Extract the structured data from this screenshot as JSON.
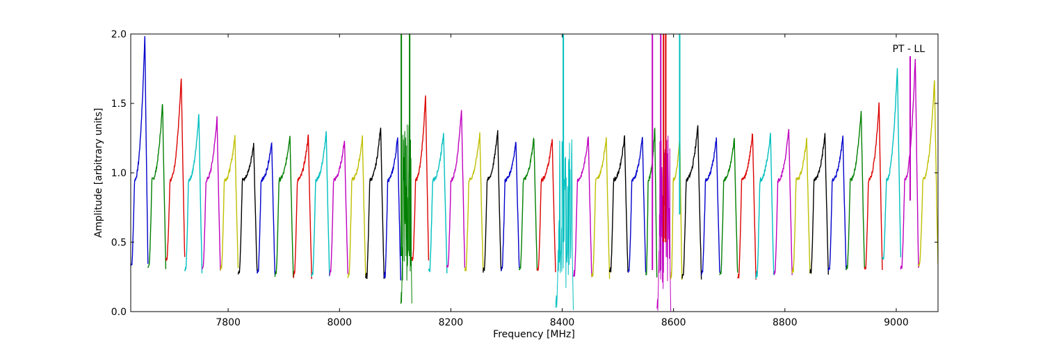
{
  "chart_data": {
    "type": "line",
    "title": "",
    "xlabel": "Frequency [MHz]",
    "ylabel": "Amplitude [arbitrary units]",
    "annotation": "PT - LL",
    "xlim": [
      7625,
      9075
    ],
    "ylim": [
      0.0,
      2.0
    ],
    "x_ticks": [
      7800,
      8000,
      8200,
      8400,
      8600,
      8800,
      9000
    ],
    "y_ticks": [
      "0.0",
      "0.5",
      "1.0",
      "1.5",
      "2.0"
    ],
    "grid": false,
    "legend": "none",
    "color_cycle": [
      "#0000cc",
      "#007f00",
      "#dd0000",
      "#00bfbf",
      "#bf00bf",
      "#bfbf00",
      "#000000"
    ],
    "channels": [
      {
        "start": 7625,
        "end": 7656,
        "top": 2.0,
        "low": 0.33,
        "edge": 0.42,
        "color": "#0000cc"
      },
      {
        "start": 7656,
        "end": 7688,
        "top": 1.51,
        "low": 0.32,
        "edge": 0.38,
        "color": "#007f00"
      },
      {
        "start": 7688,
        "end": 7722,
        "top": 1.69,
        "low": 0.38,
        "edge": 0.38,
        "color": "#dd0000"
      },
      {
        "start": 7722,
        "end": 7753,
        "top": 1.43,
        "low": 0.29,
        "edge": 0.38,
        "color": "#00bfbf"
      },
      {
        "start": 7753,
        "end": 7786,
        "top": 1.4,
        "low": 0.31,
        "edge": 0.38,
        "color": "#bf00bf"
      },
      {
        "start": 7786,
        "end": 7818,
        "top": 1.27,
        "low": 0.3,
        "edge": 0.38,
        "color": "#bfbf00"
      },
      {
        "start": 7818,
        "end": 7852,
        "top": 1.21,
        "low": 0.28,
        "edge": 0.38,
        "color": "#000000"
      },
      {
        "start": 7852,
        "end": 7884,
        "top": 1.23,
        "low": 0.27,
        "edge": 0.38,
        "color": "#0000cc"
      },
      {
        "start": 7884,
        "end": 7917,
        "top": 1.28,
        "low": 0.25,
        "edge": 0.38,
        "color": "#007f00"
      },
      {
        "start": 7917,
        "end": 7950,
        "top": 1.27,
        "low": 0.25,
        "edge": 0.38,
        "color": "#dd0000"
      },
      {
        "start": 7950,
        "end": 7982,
        "top": 1.29,
        "low": 0.26,
        "edge": 0.38,
        "color": "#00bfbf"
      },
      {
        "start": 7982,
        "end": 8015,
        "top": 1.24,
        "low": 0.27,
        "edge": 0.38,
        "color": "#bf00bf"
      },
      {
        "start": 8015,
        "end": 8047,
        "top": 1.26,
        "low": 0.25,
        "edge": 0.38,
        "color": "#bfbf00"
      },
      {
        "start": 8047,
        "end": 8080,
        "top": 1.34,
        "low": 0.24,
        "edge": 0.38,
        "color": "#000000"
      },
      {
        "start": 8080,
        "end": 8110,
        "top": 1.26,
        "low": 0.24,
        "edge": 0.38,
        "color": "#0000cc"
      },
      {
        "start": 8110,
        "end": 8130,
        "top": 1.33,
        "low": 0.05,
        "edge": 0.38,
        "color": "#007f00"
      },
      {
        "start": 8130,
        "end": 8160,
        "top": 1.56,
        "low": 0.38,
        "edge": 0.38,
        "color": "#dd0000"
      },
      {
        "start": 8160,
        "end": 8193,
        "top": 1.3,
        "low": 0.29,
        "edge": 0.38,
        "color": "#00bfbf"
      },
      {
        "start": 8193,
        "end": 8225,
        "top": 1.47,
        "low": 0.32,
        "edge": 0.38,
        "color": "#bf00bf"
      },
      {
        "start": 8225,
        "end": 8258,
        "top": 1.29,
        "low": 0.29,
        "edge": 0.38,
        "color": "#bfbf00"
      },
      {
        "start": 8258,
        "end": 8290,
        "top": 1.31,
        "low": 0.29,
        "edge": 0.38,
        "color": "#000000"
      },
      {
        "start": 8290,
        "end": 8323,
        "top": 1.23,
        "low": 0.3,
        "edge": 0.38,
        "color": "#0000cc"
      },
      {
        "start": 8323,
        "end": 8355,
        "top": 1.26,
        "low": 0.3,
        "edge": 0.38,
        "color": "#007f00"
      },
      {
        "start": 8355,
        "end": 8388,
        "top": 1.25,
        "low": 0.29,
        "edge": 0.38,
        "color": "#dd0000"
      },
      {
        "start": 8388,
        "end": 8420,
        "top": 1.25,
        "low": 0.02,
        "edge": 0.38,
        "color": "#00bfbf"
      },
      {
        "start": 8420,
        "end": 8453,
        "top": 1.27,
        "low": 0.26,
        "edge": 0.38,
        "color": "#bf00bf"
      },
      {
        "start": 8453,
        "end": 8485,
        "top": 1.26,
        "low": 0.25,
        "edge": 0.38,
        "color": "#bfbf00"
      },
      {
        "start": 8485,
        "end": 8518,
        "top": 1.27,
        "low": 0.28,
        "edge": 0.38,
        "color": "#000000"
      },
      {
        "start": 8518,
        "end": 8550,
        "top": 1.26,
        "low": 0.28,
        "edge": 0.38,
        "color": "#0000cc"
      },
      {
        "start": 8550,
        "end": 8570,
        "top": 1.33,
        "low": 0.26,
        "edge": 0.38,
        "color": "#007f00"
      },
      {
        "start": 8570,
        "end": 8595,
        "top": 1.22,
        "low": 0.01,
        "edge": 0.38,
        "color": "#bf00bf"
      },
      {
        "start": 8595,
        "end": 8615,
        "top": 1.27,
        "low": 0.24,
        "edge": 0.38,
        "color": "#bfbf00"
      },
      {
        "start": 8615,
        "end": 8650,
        "top": 1.34,
        "low": 0.24,
        "edge": 0.38,
        "color": "#000000"
      },
      {
        "start": 8650,
        "end": 8683,
        "top": 1.25,
        "low": 0.27,
        "edge": 0.38,
        "color": "#0000cc"
      },
      {
        "start": 8683,
        "end": 8715,
        "top": 1.25,
        "low": 0.27,
        "edge": 0.38,
        "color": "#007f00"
      },
      {
        "start": 8715,
        "end": 8748,
        "top": 1.29,
        "low": 0.24,
        "edge": 0.38,
        "color": "#dd0000"
      },
      {
        "start": 8748,
        "end": 8780,
        "top": 1.29,
        "low": 0.25,
        "edge": 0.38,
        "color": "#00bfbf"
      },
      {
        "start": 8780,
        "end": 8813,
        "top": 1.32,
        "low": 0.26,
        "edge": 0.38,
        "color": "#bf00bf"
      },
      {
        "start": 8813,
        "end": 8845,
        "top": 1.25,
        "low": 0.28,
        "edge": 0.38,
        "color": "#bfbf00"
      },
      {
        "start": 8845,
        "end": 8878,
        "top": 1.28,
        "low": 0.28,
        "edge": 0.38,
        "color": "#000000"
      },
      {
        "start": 8878,
        "end": 8910,
        "top": 1.26,
        "low": 0.29,
        "edge": 0.38,
        "color": "#0000cc"
      },
      {
        "start": 8910,
        "end": 8943,
        "top": 1.45,
        "low": 0.3,
        "edge": 0.38,
        "color": "#007f00"
      },
      {
        "start": 8943,
        "end": 8975,
        "top": 1.5,
        "low": 0.3,
        "edge": 0.38,
        "color": "#dd0000"
      },
      {
        "start": 8975,
        "end": 9008,
        "top": 1.77,
        "low": 0.38,
        "edge": 0.38,
        "color": "#00bfbf"
      },
      {
        "start": 9008,
        "end": 9040,
        "top": 1.84,
        "low": 0.31,
        "edge": 0.38,
        "color": "#bf00bf"
      },
      {
        "start": 9040,
        "end": 9075,
        "top": 1.68,
        "low": 0.33,
        "edge": 0.38,
        "color": "#bfbf00"
      }
    ],
    "spikes": [
      {
        "x": 8111,
        "from": 0.4,
        "to": 2.0,
        "color": "#007f00"
      },
      {
        "x": 8126,
        "from": 0.4,
        "to": 2.0,
        "color": "#007f00"
      },
      {
        "x": 8402,
        "from": 0.5,
        "to": 2.0,
        "color": "#00bfbf"
      },
      {
        "x": 8562,
        "from": 0.3,
        "to": 2.0,
        "color": "#bf00bf"
      },
      {
        "x": 8577,
        "from": 0.3,
        "to": 2.0,
        "color": "#bf00bf"
      },
      {
        "x": 8582,
        "from": 0.5,
        "to": 2.0,
        "color": "#dd0000"
      },
      {
        "x": 8586,
        "from": 0.5,
        "to": 2.0,
        "color": "#dd0000"
      },
      {
        "x": 8611,
        "from": 0.7,
        "to": 2.0,
        "color": "#00bfbf"
      },
      {
        "x": 9025,
        "from": 0.8,
        "to": 1.84,
        "color": "#bf00bf"
      }
    ]
  }
}
